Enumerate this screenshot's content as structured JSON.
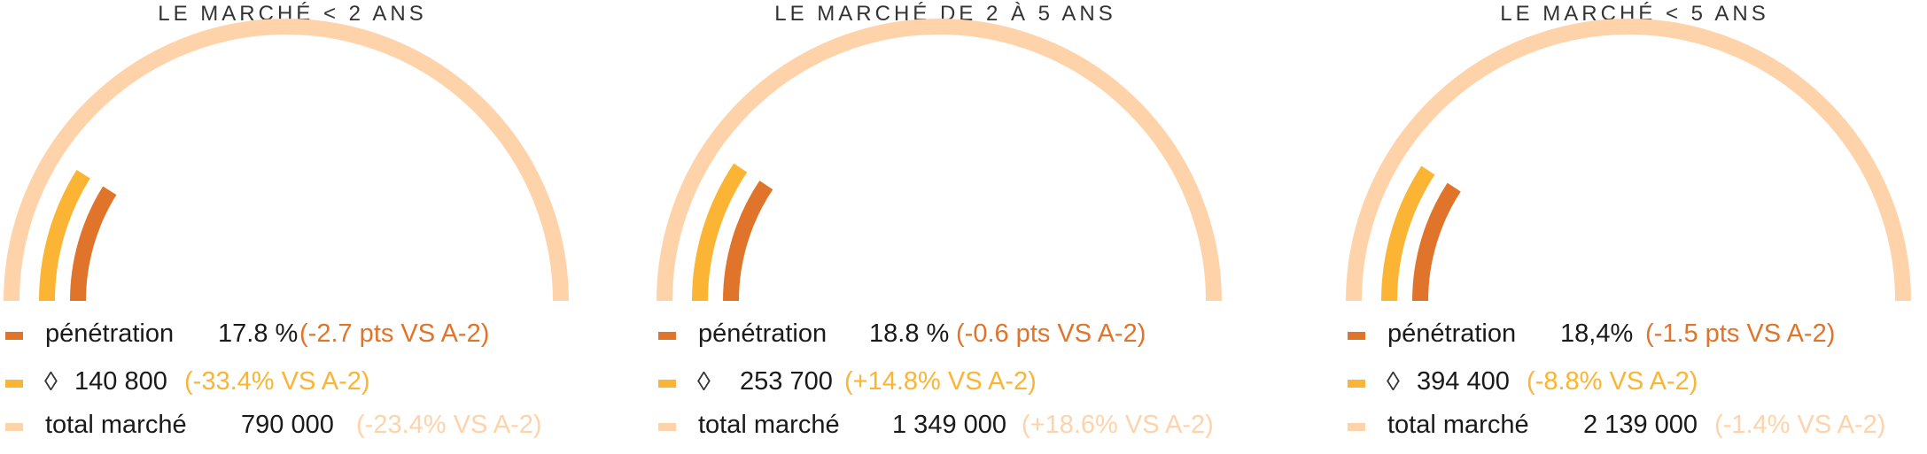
{
  "colors": {
    "total": "#ffd3aa",
    "brand": "#fbb434",
    "penetration": "#e0742a"
  },
  "legend_icons": {
    "brand": "diamond-logo-icon"
  },
  "chart_data": [
    {
      "type": "gauge",
      "title": "LE MARCHÉ < 2 ANS",
      "penetration": {
        "label": "pénétration",
        "value": "17.8 %",
        "variation": "(-2.7 pts VS A-2)",
        "percent": 17.8
      },
      "brand": {
        "value": "140 800",
        "variation": "(-33.4% VS A-2)"
      },
      "total": {
        "label": "total marché",
        "value": "790 000",
        "variation": "(-23.4% VS A-2)"
      }
    },
    {
      "type": "gauge",
      "title": "LE MARCHÉ DE 2 À 5 ANS",
      "penetration": {
        "label": "pénétration",
        "value": "18.8 %",
        "variation": "(-0.6 pts VS A-2)",
        "percent": 18.8
      },
      "brand": {
        "value": "253 700",
        "variation": "(+14.8% VS A-2)"
      },
      "total": {
        "label": "total marché",
        "value": "1 349 000",
        "variation": "(+18.6% VS A-2)"
      }
    },
    {
      "type": "gauge",
      "title": "LE MARCHÉ < 5 ANS",
      "penetration": {
        "label": "pénétration",
        "value": "18,4%",
        "variation": "(-1.5 pts VS A-2)",
        "percent": 18.4
      },
      "brand": {
        "value": "394 400",
        "variation": "(-8.8% VS A-2)"
      },
      "total": {
        "label": "total marché",
        "value": "2 139 000",
        "variation": "(-1.4% VS A-2)"
      }
    }
  ]
}
